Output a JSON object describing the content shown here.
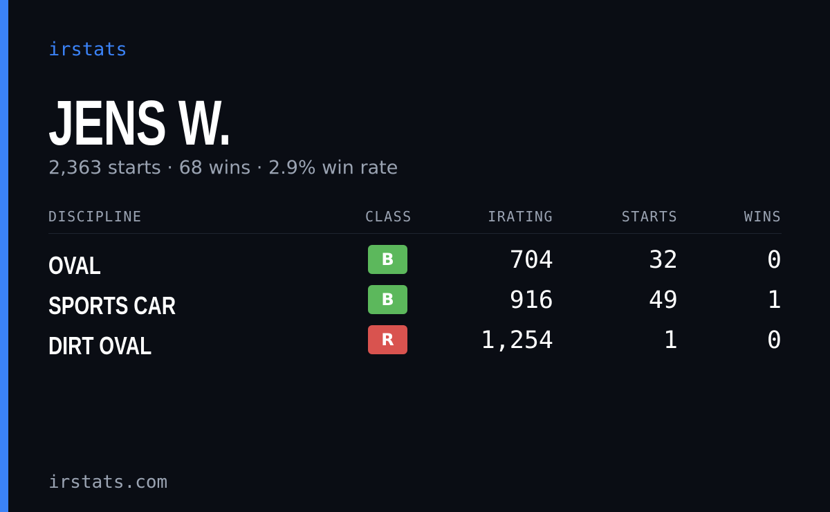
{
  "brand": "irstats",
  "driver": {
    "name": "JENS W.",
    "summary": "2,363 starts · 68 wins · 2.9% win rate"
  },
  "table": {
    "headers": [
      "DISCIPLINE",
      "CLASS",
      "IRATING",
      "STARTS",
      "WINS"
    ],
    "rows": [
      {
        "discipline": "OVAL",
        "class": "B",
        "class_color": "#5cb85c",
        "irating": "704",
        "starts": "32",
        "wins": "0"
      },
      {
        "discipline": "SPORTS CAR",
        "class": "B",
        "class_color": "#5cb85c",
        "irating": "916",
        "starts": "49",
        "wins": "1"
      },
      {
        "discipline": "DIRT OVAL",
        "class": "R",
        "class_color": "#d9534f",
        "irating": "1,254",
        "starts": "1",
        "wins": "0"
      }
    ]
  },
  "footer": "irstats.com"
}
